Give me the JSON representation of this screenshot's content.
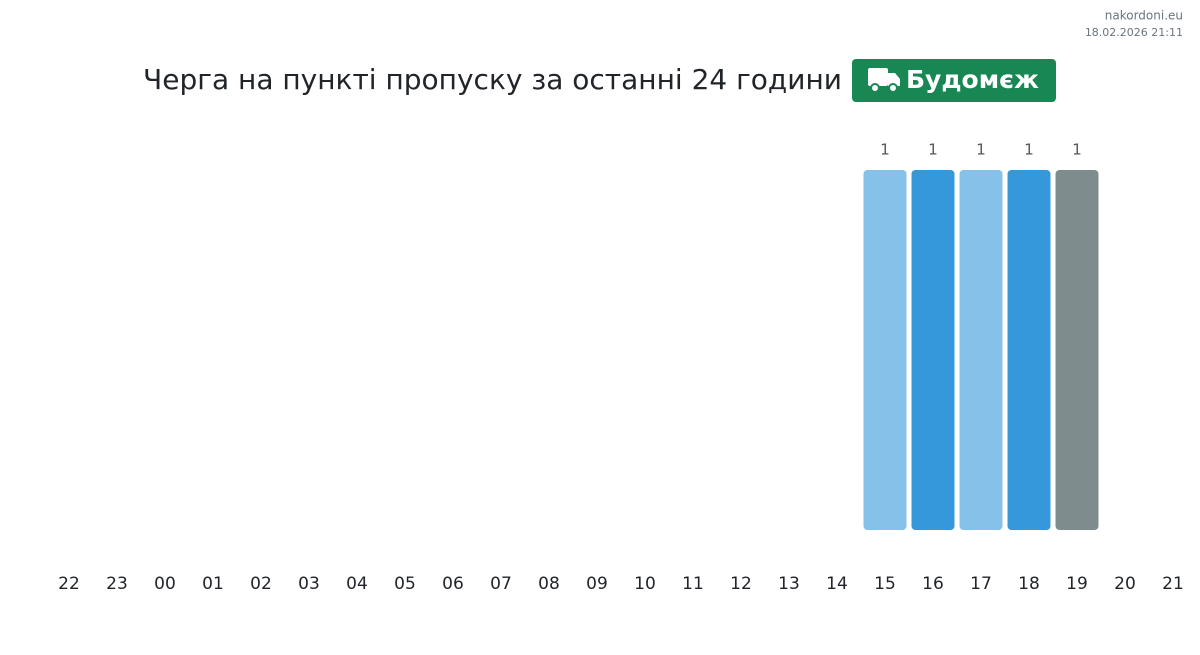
{
  "site": "nakordoni.eu",
  "timestamp": "18.02.2026 21:11",
  "chart_data": {
    "type": "bar",
    "title": "Черга на пункті пропуску за останні 24 години",
    "badge": "Будомєж",
    "categories": [
      "22",
      "23",
      "00",
      "01",
      "02",
      "03",
      "04",
      "05",
      "06",
      "07",
      "08",
      "09",
      "10",
      "11",
      "12",
      "13",
      "14",
      "15",
      "16",
      "17",
      "18",
      "19",
      "20",
      "21"
    ],
    "values": [
      null,
      null,
      null,
      null,
      null,
      null,
      null,
      null,
      null,
      null,
      null,
      null,
      null,
      null,
      null,
      null,
      null,
      1,
      1,
      1,
      1,
      1,
      null,
      null
    ],
    "colors": [
      null,
      null,
      null,
      null,
      null,
      null,
      null,
      null,
      null,
      null,
      null,
      null,
      null,
      null,
      null,
      null,
      null,
      "#85c1e9",
      "#3498db",
      "#85c1e9",
      "#3498db",
      "#7f8c8d",
      null,
      null
    ],
    "ylim": [
      0,
      1
    ]
  }
}
